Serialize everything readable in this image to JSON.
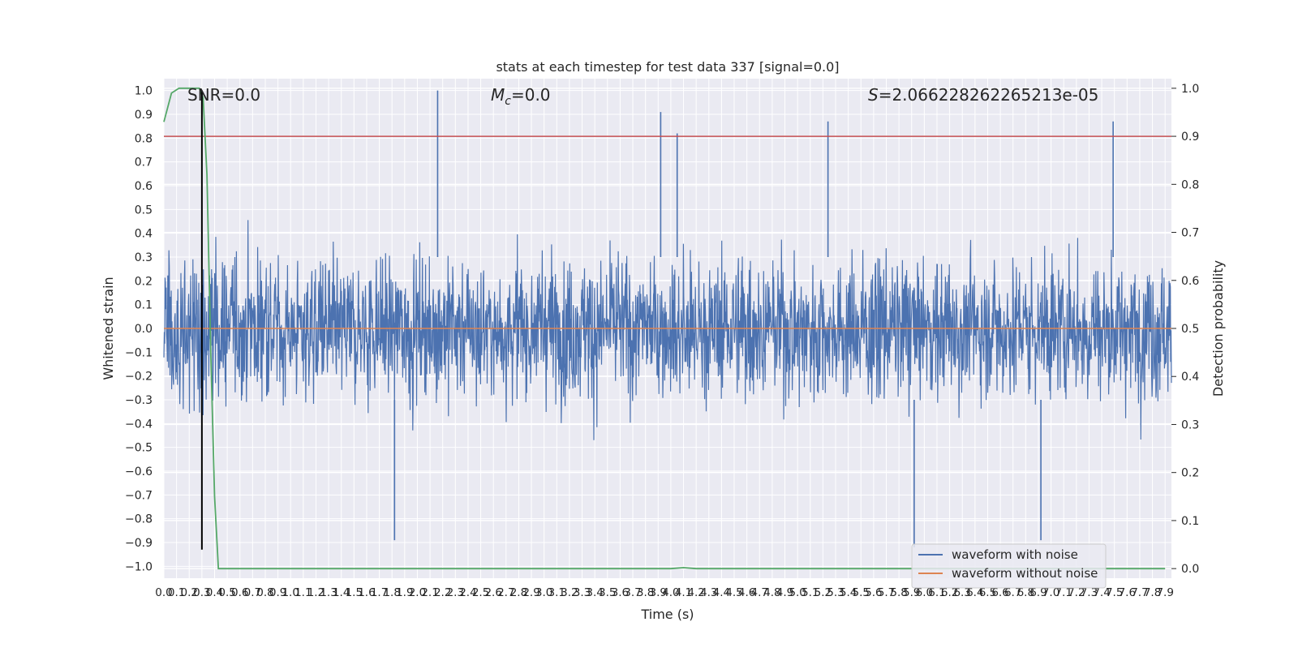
{
  "chart_data": {
    "type": "line",
    "title": "stats at each timestep for test data 337 [signal=0.0]",
    "xlabel": "Time (s)",
    "ylabel": "Whitened strain",
    "ylabel_right": "Detection probability",
    "xlim": [
      0.0,
      7.95
    ],
    "ylim": [
      -1.05,
      1.05
    ],
    "ylim_right": [
      -0.02,
      1.02
    ],
    "x_ticks": [
      0.0,
      0.1,
      0.2,
      0.3,
      0.4,
      0.5,
      0.6,
      0.7,
      0.8,
      0.9,
      1.0,
      1.1,
      1.2,
      1.3,
      1.4,
      1.5,
      1.6,
      1.7,
      1.8,
      1.9,
      2.0,
      2.1,
      2.2,
      2.3,
      2.4,
      2.5,
      2.6,
      2.7,
      2.8,
      2.9,
      3.0,
      3.1,
      3.2,
      3.3,
      3.4,
      3.5,
      3.6,
      3.7,
      3.8,
      3.9,
      4.0,
      4.1,
      4.2,
      4.3,
      4.4,
      4.5,
      4.6,
      4.7,
      4.8,
      4.9,
      5.0,
      5.1,
      5.2,
      5.3,
      5.4,
      5.5,
      5.6,
      5.7,
      5.8,
      5.9,
      6.0,
      6.1,
      6.2,
      6.3,
      6.4,
      6.5,
      6.6,
      6.7,
      6.8,
      6.9,
      7.0,
      7.1,
      7.2,
      7.3,
      7.4,
      7.5,
      7.6,
      7.7,
      7.8,
      7.9
    ],
    "x_tick_labels": [
      "0.0",
      "0.1",
      "0.2",
      "0.3",
      "0.4",
      "0.5",
      "0.6",
      "0.7",
      "0.8",
      "0.9",
      "1.0",
      "1.1",
      "1.2",
      "1.3",
      "1.4",
      "1.5",
      "1.6",
      "1.7",
      "1.8",
      "1.9",
      "2.0",
      "2.1",
      "2.2",
      "2.3",
      "2.4",
      "2.5",
      "2.6",
      "2.7",
      "2.8",
      "2.9",
      "3.0",
      "3.1",
      "3.2",
      "3.3",
      "3.4",
      "3.5",
      "3.6",
      "3.7",
      "3.8",
      "3.9",
      "4.0",
      "4.1",
      "4.2",
      "4.3",
      "4.4",
      "4.5",
      "4.6",
      "4.7",
      "4.8",
      "4.9",
      "5.0",
      "5.1",
      "5.2",
      "5.3",
      "5.4",
      "5.5",
      "5.6",
      "5.7",
      "5.8",
      "5.9",
      "6.0",
      "6.1",
      "6.2",
      "6.3",
      "6.4",
      "6.5",
      "6.6",
      "6.7",
      "6.8",
      "6.9",
      "7.0",
      "7.1",
      "7.2",
      "7.3",
      "7.4",
      "7.5",
      "7.6",
      "7.7",
      "7.8",
      "7.9"
    ],
    "y_ticks": [
      1.0,
      0.9,
      0.8,
      0.7,
      0.6,
      0.5,
      0.4,
      0.3,
      0.2,
      0.1,
      0.0,
      -0.1,
      -0.2,
      -0.3,
      -0.4,
      -0.5,
      -0.6,
      -0.7,
      -0.8,
      -0.9,
      -1.0
    ],
    "y_tick_labels": [
      "1.0",
      "0.9",
      "0.8",
      "0.7",
      "0.6",
      "0.5",
      "0.4",
      "0.3",
      "0.2",
      "0.1",
      "0.0",
      "−0.1",
      "−0.2",
      "−0.3",
      "−0.4",
      "−0.5",
      "−0.6",
      "−0.7",
      "−0.8",
      "−0.9",
      "−1.0"
    ],
    "y_ticks_right": [
      1.0,
      0.9,
      0.8,
      0.7,
      0.6,
      0.5,
      0.4,
      0.3,
      0.2,
      0.1,
      0.0
    ],
    "y_tick_labels_right": [
      "1.0",
      "0.9",
      "0.8",
      "0.7",
      "0.6",
      "0.5",
      "0.4",
      "0.3",
      "0.2",
      "0.1",
      "0.0"
    ],
    "grid": true,
    "legend_position": "bottom-right",
    "annotations": {
      "snr": "SNR=0.0",
      "mc_symbol": "M",
      "mc_sub": "c",
      "mc_value": "=0.0",
      "s_symbol": "S",
      "s_value": "=2.066228262265213e-05"
    },
    "series": [
      {
        "name": "waveform with noise",
        "color": "#4c72b0",
        "axis": "left",
        "description": "dense noisy whitened strain",
        "x_range": [
          0.0,
          7.95
        ],
        "approx_band_core": [
          -0.3,
          0.3
        ],
        "approx_extremes": [
          -0.92,
          1.0
        ],
        "peaks": [
          {
            "x": 2.16,
            "y": 1.0
          },
          {
            "x": 3.92,
            "y": 0.91
          },
          {
            "x": 4.05,
            "y": 0.82
          },
          {
            "x": 5.24,
            "y": 0.87
          },
          {
            "x": 7.49,
            "y": 0.87
          },
          {
            "x": 1.82,
            "y": -0.89
          },
          {
            "x": 5.92,
            "y": -0.92
          },
          {
            "x": 6.92,
            "y": -0.89
          }
        ]
      },
      {
        "name": "waveform without noise",
        "color": "#dd8452",
        "axis": "left",
        "x": [
          0.0,
          7.95
        ],
        "y": [
          0.0,
          0.0
        ]
      },
      {
        "name": "",
        "color": "#55a868",
        "axis": "right",
        "x": [
          0.0,
          0.06,
          0.12,
          0.18,
          0.24,
          0.28,
          0.31,
          0.34,
          0.37,
          0.4,
          0.43,
          0.5,
          2.0,
          4.0,
          4.1,
          4.2,
          5.0,
          7.9
        ],
        "y": [
          0.93,
          0.99,
          1.0,
          1.0,
          1.0,
          1.0,
          0.98,
          0.82,
          0.45,
          0.15,
          0.0,
          0.0,
          0.0,
          0.0,
          0.002,
          0.0,
          0.0,
          0.0
        ]
      }
    ],
    "threshold_line": {
      "color": "#c44e52",
      "axis": "right",
      "y": 0.9
    },
    "marker_line": {
      "color": "#000000",
      "x": 0.3,
      "y_range_left": [
        -0.93,
        1.0
      ]
    }
  }
}
